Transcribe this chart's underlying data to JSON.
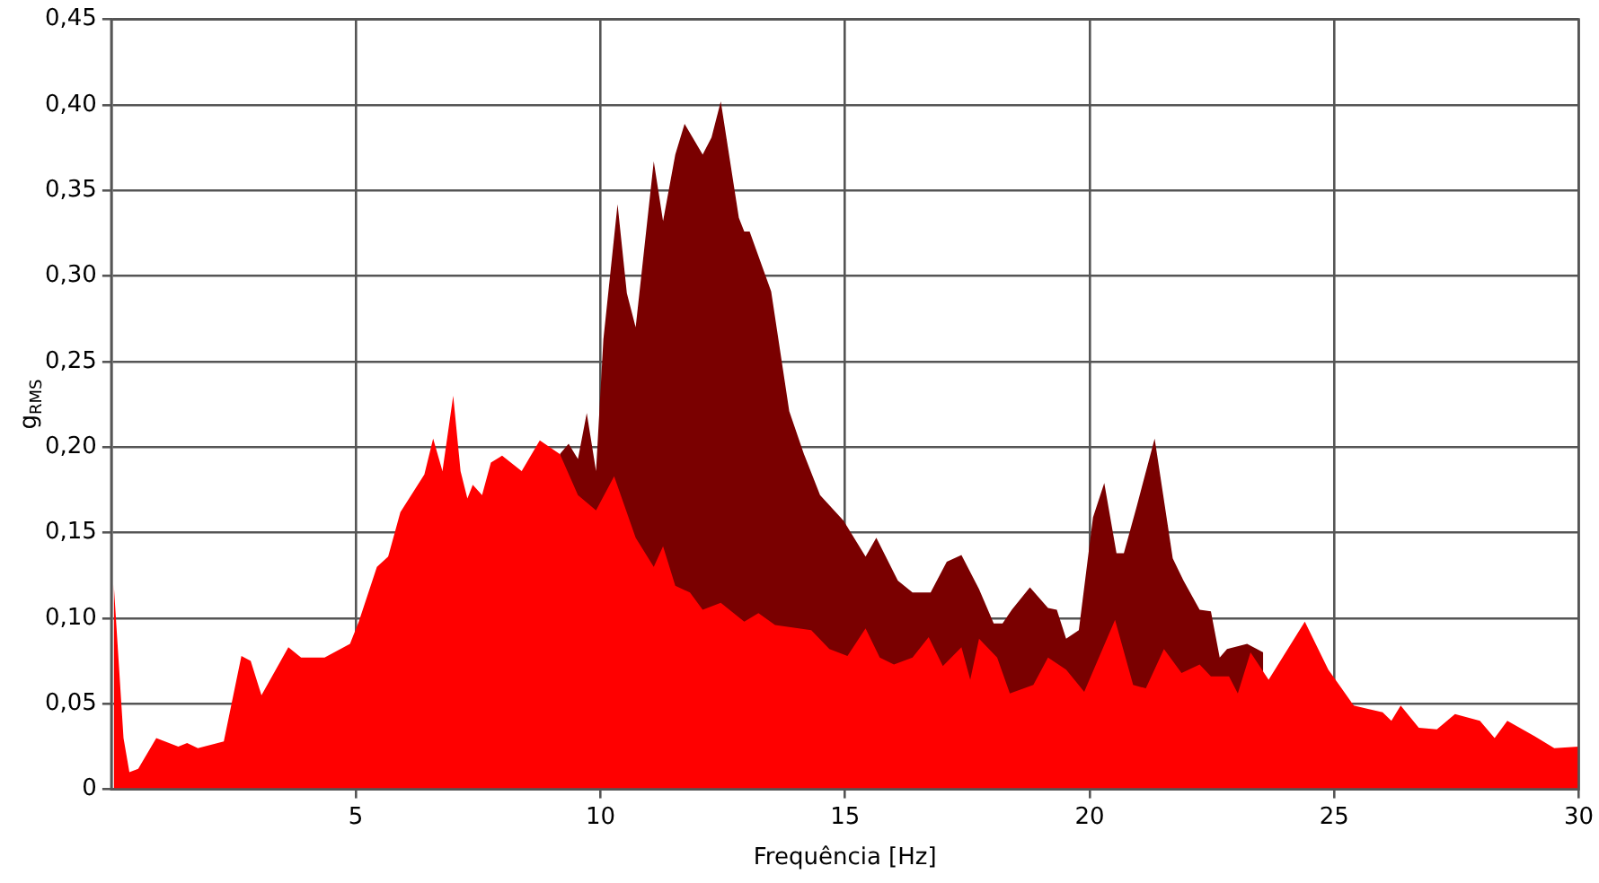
{
  "chart_data": {
    "type": "area",
    "xlabel": "Frequência [Hz]",
    "ylabel": "g$_{RMS}$",
    "xlim": [
      0,
      30
    ],
    "xticks": [
      5,
      10,
      15,
      20,
      25,
      30
    ],
    "ylim": [
      0,
      0.45
    ],
    "yticks": [
      0,
      {
        "value": 0.05,
        "label": "0,05"
      },
      {
        "value": 0.1,
        "label": "0,10"
      },
      {
        "value": 0.15,
        "label": "0,15"
      },
      {
        "value": 0.2,
        "label": "0,20"
      },
      {
        "value": 0.25,
        "label": "0,25"
      },
      {
        "value": 0.3,
        "label": "0,30"
      },
      {
        "value": 0.35,
        "label": "0,35"
      },
      {
        "value": 0.4,
        "label": "0,40"
      },
      {
        "value": 0.45,
        "label": "0,45"
      }
    ],
    "grid": true,
    "marker": "none",
    "series": [
      {
        "color": "#7a0000",
        "x": [
          9.17,
          9.35,
          9.54,
          9.72,
          9.91,
          10.06,
          10.35,
          10.54,
          10.72,
          11.09,
          11.28,
          11.53,
          11.72,
          12.09,
          12.27,
          12.46,
          12.83,
          12.94,
          13.05,
          13.49,
          13.86,
          14.16,
          14.49,
          14.97,
          15.42,
          15.64,
          16.08,
          16.38,
          16.75,
          17.08,
          17.38,
          17.74,
          18.04,
          18.22,
          18.41,
          18.78,
          19.15,
          19.33,
          19.52,
          19.78,
          20.07,
          20.3,
          20.55,
          20.7,
          20.96,
          21.33,
          21.7,
          21.92,
          22.25,
          22.48,
          22.66,
          22.81,
          23.22,
          23.55
        ],
        "values": [
          0.196,
          0.202,
          0.193,
          0.22,
          0.186,
          0.263,
          0.342,
          0.29,
          0.27,
          0.367,
          0.332,
          0.371,
          0.389,
          0.371,
          0.381,
          0.402,
          0.334,
          0.326,
          0.326,
          0.291,
          0.221,
          0.196,
          0.172,
          0.157,
          0.136,
          0.147,
          0.122,
          0.115,
          0.115,
          0.133,
          0.137,
          0.117,
          0.097,
          0.097,
          0.105,
          0.118,
          0.106,
          0.105,
          0.088,
          0.093,
          0.159,
          0.179,
          0.138,
          0.138,
          0.165,
          0.205,
          0.135,
          0.122,
          0.105,
          0.104,
          0.077,
          0.082,
          0.085,
          0.08
        ]
      },
      {
        "color": "#ff0000",
        "x": [
          0.05,
          0.25,
          0.37,
          0.55,
          0.92,
          1.37,
          1.55,
          1.77,
          2.3,
          2.66,
          2.85,
          3.07,
          3.62,
          3.88,
          4.36,
          4.88,
          5.06,
          5.43,
          5.66,
          5.91,
          6.4,
          6.58,
          6.77,
          6.99,
          7.14,
          7.28,
          7.39,
          7.58,
          7.76,
          7.99,
          8.39,
          8.76,
          9.17,
          9.54,
          9.91,
          10.28,
          10.72,
          11.09,
          11.28,
          11.53,
          11.83,
          12.09,
          12.46,
          12.94,
          13.23,
          13.57,
          14.31,
          14.68,
          15.05,
          15.42,
          15.71,
          16.0,
          16.38,
          16.71,
          17.0,
          17.38,
          17.56,
          17.74,
          18.11,
          18.37,
          18.85,
          19.15,
          19.52,
          19.89,
          20.52,
          20.89,
          21.15,
          21.52,
          21.88,
          22.25,
          22.48,
          22.85,
          23.03,
          23.29,
          23.66,
          24.4,
          24.88,
          25.4,
          25.99,
          26.17,
          26.36,
          26.73,
          27.1,
          27.47,
          27.98,
          28.28,
          28.54,
          29.1,
          29.5,
          30.0
        ],
        "values": [
          0.12,
          0.03,
          0.01,
          0.012,
          0.03,
          0.025,
          0.027,
          0.024,
          0.028,
          0.078,
          0.075,
          0.055,
          0.083,
          0.077,
          0.077,
          0.085,
          0.098,
          0.13,
          0.136,
          0.162,
          0.184,
          0.205,
          0.186,
          0.23,
          0.186,
          0.17,
          0.178,
          0.172,
          0.191,
          0.195,
          0.186,
          0.204,
          0.196,
          0.172,
          0.163,
          0.183,
          0.147,
          0.13,
          0.142,
          0.119,
          0.115,
          0.105,
          0.109,
          0.098,
          0.103,
          0.096,
          0.093,
          0.082,
          0.078,
          0.094,
          0.077,
          0.073,
          0.077,
          0.089,
          0.072,
          0.083,
          0.064,
          0.088,
          0.077,
          0.056,
          0.061,
          0.077,
          0.07,
          0.057,
          0.099,
          0.061,
          0.059,
          0.082,
          0.068,
          0.073,
          0.066,
          0.066,
          0.056,
          0.08,
          0.064,
          0.098,
          0.07,
          0.049,
          0.045,
          0.04,
          0.049,
          0.036,
          0.035,
          0.044,
          0.04,
          0.03,
          0.04,
          0.031,
          0.024,
          0.025
        ]
      }
    ]
  }
}
